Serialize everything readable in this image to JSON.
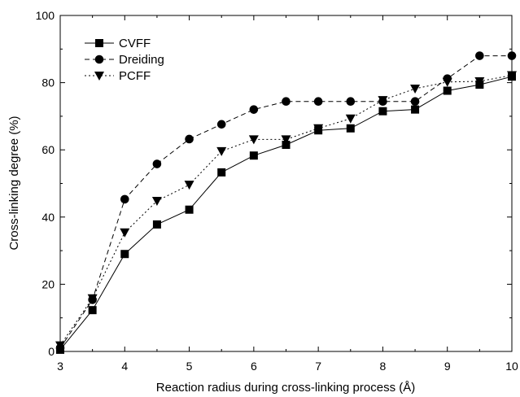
{
  "chart_data": {
    "type": "line",
    "title": "",
    "xlabel": "Reaction radius during cross-linking process (Å)",
    "ylabel": "Cross-linking degree (%)",
    "xlim": [
      3,
      10
    ],
    "ylim": [
      0,
      100
    ],
    "xticks": [
      3,
      4,
      5,
      6,
      7,
      8,
      9,
      10
    ],
    "yticks": [
      0,
      20,
      40,
      60,
      80,
      100
    ],
    "grid": false,
    "legend_position": "top-left",
    "x": [
      3,
      3.5,
      4,
      4.5,
      5,
      5.5,
      6,
      6.5,
      7,
      7.5,
      8,
      8.5,
      9,
      9.5,
      10
    ],
    "series": [
      {
        "name": "CVFF",
        "marker": "square",
        "line_style": "solid",
        "color": "#000000",
        "values": [
          0.5,
          12.3,
          29,
          37.8,
          42.2,
          53.3,
          58.3,
          61.5,
          65.8,
          66.4,
          71.5,
          72,
          77.6,
          79.4,
          81.8
        ]
      },
      {
        "name": "Dreiding",
        "marker": "circle",
        "line_style": "dashed",
        "color": "#000000",
        "values": [
          1,
          15.4,
          45.3,
          55.8,
          63.2,
          67.6,
          72,
          74.4,
          74.4,
          74.4,
          74.4,
          74.4,
          81.2,
          88,
          88
        ]
      },
      {
        "name": "PCFF",
        "marker": "triangle-down",
        "line_style": "dotted",
        "color": "#000000",
        "values": [
          1.8,
          15.8,
          35.4,
          44.8,
          49.6,
          59.6,
          63.1,
          63.1,
          66.4,
          69.3,
          74.8,
          78.2,
          80.2,
          80.4,
          82.2
        ]
      }
    ]
  }
}
